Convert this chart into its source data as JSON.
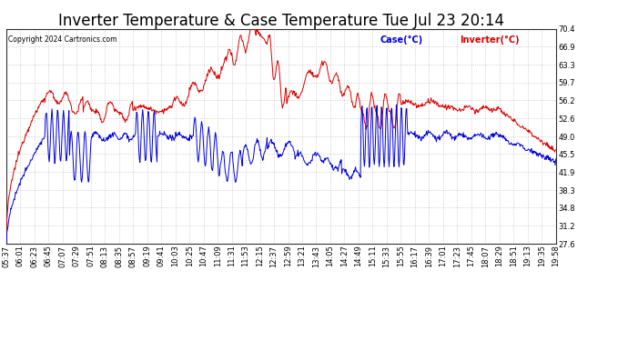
{
  "title": "Inverter Temperature & Case Temperature Tue Jul 23 20:14",
  "copyright": "Copyright 2024 Cartronics.com",
  "legend_case": "Case(°C)",
  "legend_inverter": "Inverter(°C)",
  "case_color": "#0000dd",
  "inverter_color": "#dd0000",
  "ylim": [
    27.6,
    70.4
  ],
  "yticks": [
    27.6,
    31.2,
    34.8,
    38.3,
    41.9,
    45.5,
    49.0,
    52.6,
    56.2,
    59.7,
    63.3,
    66.9,
    70.4
  ],
  "background_color": "#ffffff",
  "grid_color": "#aaaaaa",
  "title_fontsize": 12,
  "tick_fontsize": 6,
  "x_labels": [
    "05:37",
    "06:01",
    "06:23",
    "06:45",
    "07:07",
    "07:29",
    "07:51",
    "08:13",
    "08:35",
    "08:57",
    "09:19",
    "09:41",
    "10:03",
    "10:25",
    "10:47",
    "11:09",
    "11:31",
    "11:53",
    "12:15",
    "12:37",
    "12:59",
    "13:21",
    "13:43",
    "14:05",
    "14:27",
    "14:49",
    "15:11",
    "15:33",
    "15:55",
    "16:17",
    "16:39",
    "17:01",
    "17:23",
    "17:45",
    "18:07",
    "18:29",
    "18:51",
    "19:13",
    "19:35",
    "19:58"
  ]
}
